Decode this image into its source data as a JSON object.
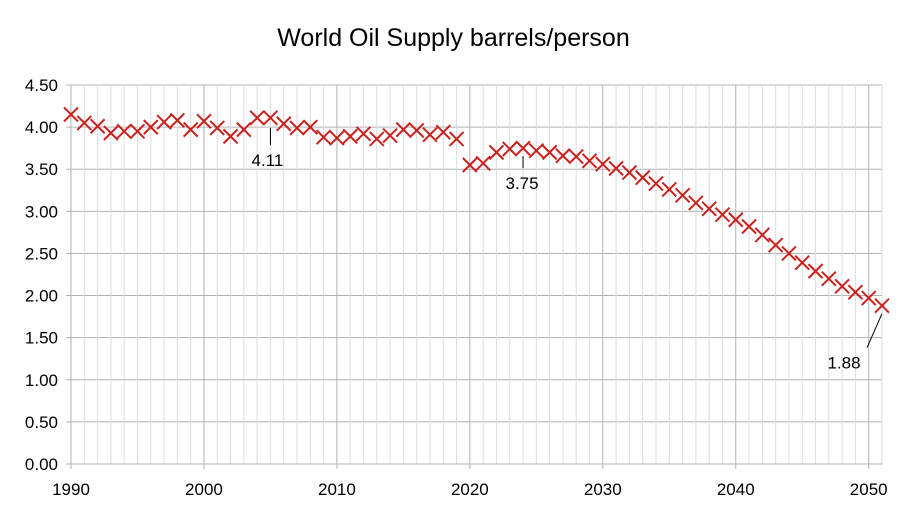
{
  "chart_data": {
    "type": "scatter",
    "title": "World Oil Supply barrels/person",
    "xlabel": "",
    "ylabel": "",
    "xlim": [
      1990,
      2051
    ],
    "ylim": [
      0,
      4.5
    ],
    "x_ticks": [
      "1990",
      "2000",
      "2010",
      "2020",
      "2030",
      "2040",
      "2050"
    ],
    "y_ticks": [
      "0.00",
      "0.50",
      "1.00",
      "1.50",
      "2.00",
      "2.50",
      "3.00",
      "3.50",
      "4.00",
      "4.50"
    ],
    "grid": true,
    "legend": "none",
    "marker": "x",
    "marker_color": "#c9211e",
    "x": [
      1990,
      1991,
      1992,
      1993,
      1994,
      1995,
      1996,
      1997,
      1998,
      1999,
      2000,
      2001,
      2002,
      2003,
      2004,
      2005,
      2006,
      2007,
      2008,
      2009,
      2010,
      2011,
      2012,
      2013,
      2014,
      2015,
      2016,
      2017,
      2018,
      2019,
      2020,
      2021,
      2022,
      2023,
      2024,
      2025,
      2026,
      2027,
      2028,
      2029,
      2030,
      2031,
      2032,
      2033,
      2034,
      2035,
      2036,
      2037,
      2038,
      2039,
      2040,
      2041,
      2042,
      2043,
      2044,
      2045,
      2046,
      2047,
      2048,
      2049,
      2050,
      2051
    ],
    "y": [
      4.15,
      4.05,
      4.01,
      3.93,
      3.95,
      3.95,
      4.0,
      4.06,
      4.08,
      3.97,
      4.07,
      3.99,
      3.89,
      3.97,
      4.11,
      4.11,
      4.04,
      3.99,
      4.0,
      3.88,
      3.87,
      3.89,
      3.92,
      3.86,
      3.9,
      3.97,
      3.96,
      3.91,
      3.94,
      3.86,
      3.55,
      3.57,
      3.7,
      3.74,
      3.75,
      3.72,
      3.7,
      3.66,
      3.65,
      3.6,
      3.56,
      3.51,
      3.46,
      3.4,
      3.33,
      3.26,
      3.19,
      3.1,
      3.03,
      2.96,
      2.9,
      2.82,
      2.72,
      2.6,
      2.5,
      2.39,
      2.29,
      2.2,
      2.11,
      2.04,
      1.97,
      1.88
    ],
    "annotations": [
      {
        "x": 2005,
        "y": 4.11,
        "text": "4.11"
      },
      {
        "x": 2024,
        "y": 3.75,
        "text": "3.75"
      },
      {
        "x": 2051,
        "y": 1.88,
        "text": "1.88"
      }
    ]
  }
}
